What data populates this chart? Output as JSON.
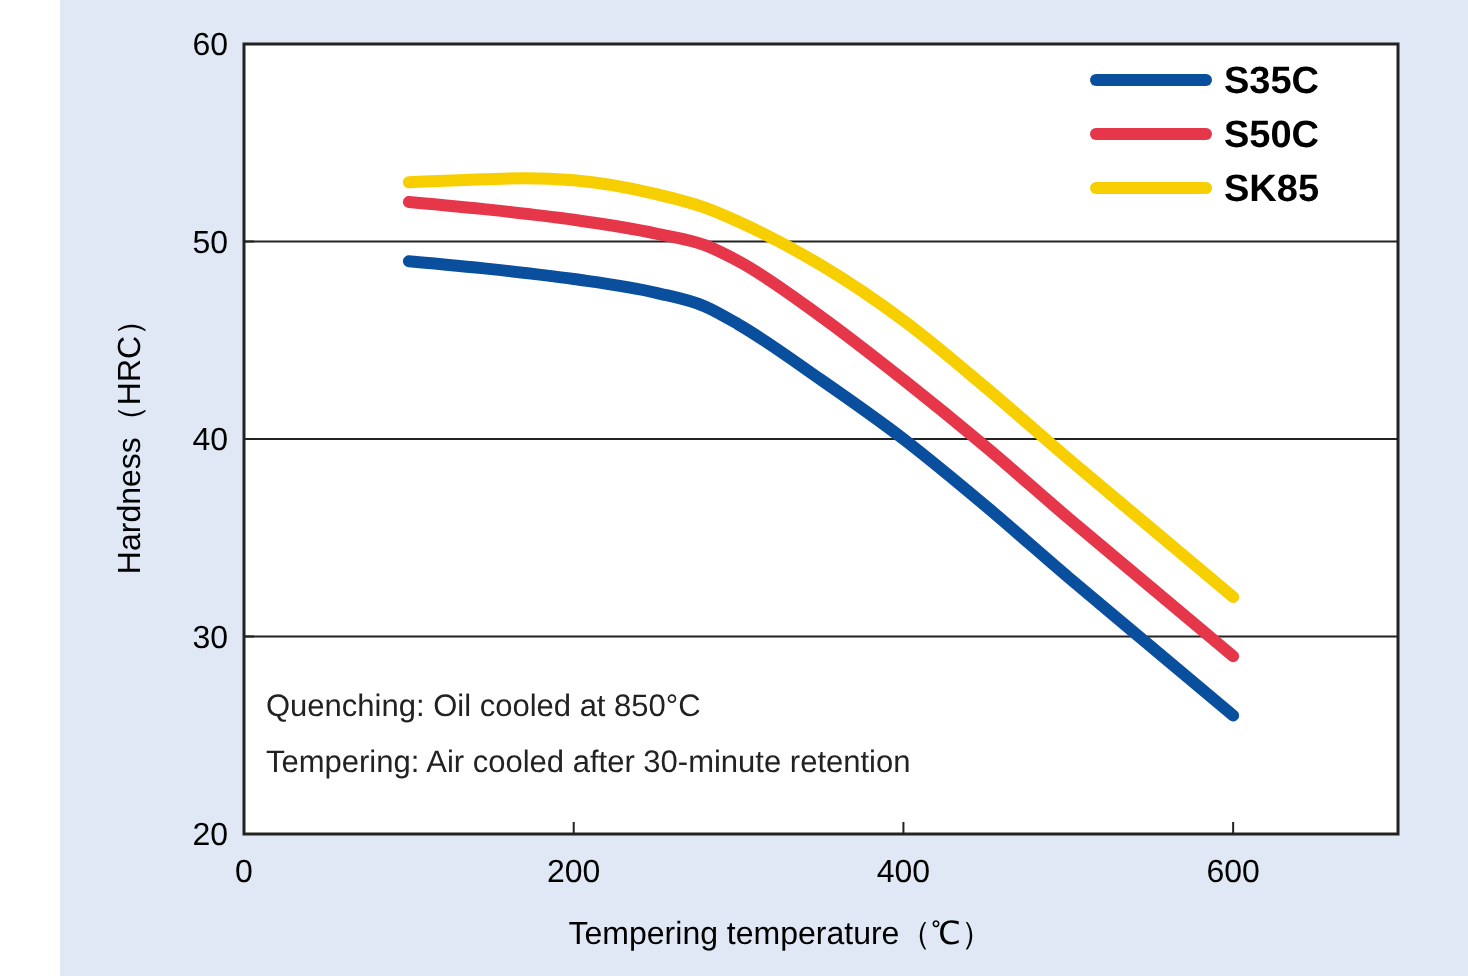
{
  "chart_data": {
    "type": "line",
    "xlabel": "Tempering temperature（℃）",
    "ylabel": "Hardness（HRC）",
    "xlim": [
      0,
      700
    ],
    "xticks": [
      0,
      200,
      400,
      600
    ],
    "ylim": [
      20,
      60
    ],
    "yticks": [
      20,
      30,
      40,
      50,
      60
    ],
    "grid": "y",
    "legend": "top right",
    "marker": "none",
    "line_style": "solid",
    "annotations": [
      "Quenching: Oil cooled at 850°C",
      "Tempering: Air cooled after 30-minute retention"
    ],
    "series": [
      {
        "name": "S35C",
        "color": "#0a4f9e",
        "x": [
          100,
          150,
          200,
          250,
          280,
          300,
          350,
          400,
          450,
          500,
          550,
          600
        ],
        "values": [
          49,
          48.6,
          48.1,
          47.4,
          46.7,
          45.8,
          43,
          40,
          36.6,
          33,
          29.5,
          26
        ]
      },
      {
        "name": "S50C",
        "color": "#e6364a",
        "x": [
          100,
          150,
          200,
          250,
          280,
          300,
          350,
          400,
          450,
          500,
          550,
          600
        ],
        "values": [
          52,
          51.6,
          51.1,
          50.4,
          49.8,
          49,
          46.2,
          43,
          39.6,
          36,
          32.5,
          29
        ]
      },
      {
        "name": "SK85",
        "color": "#f7cf00",
        "x": [
          100,
          130,
          170,
          200,
          250,
          280,
          300,
          350,
          400,
          450,
          500,
          550,
          600
        ],
        "values": [
          53,
          53.1,
          53.2,
          53.1,
          52.4,
          51.7,
          51,
          48.8,
          46,
          42.6,
          39,
          35.5,
          32
        ]
      }
    ]
  }
}
